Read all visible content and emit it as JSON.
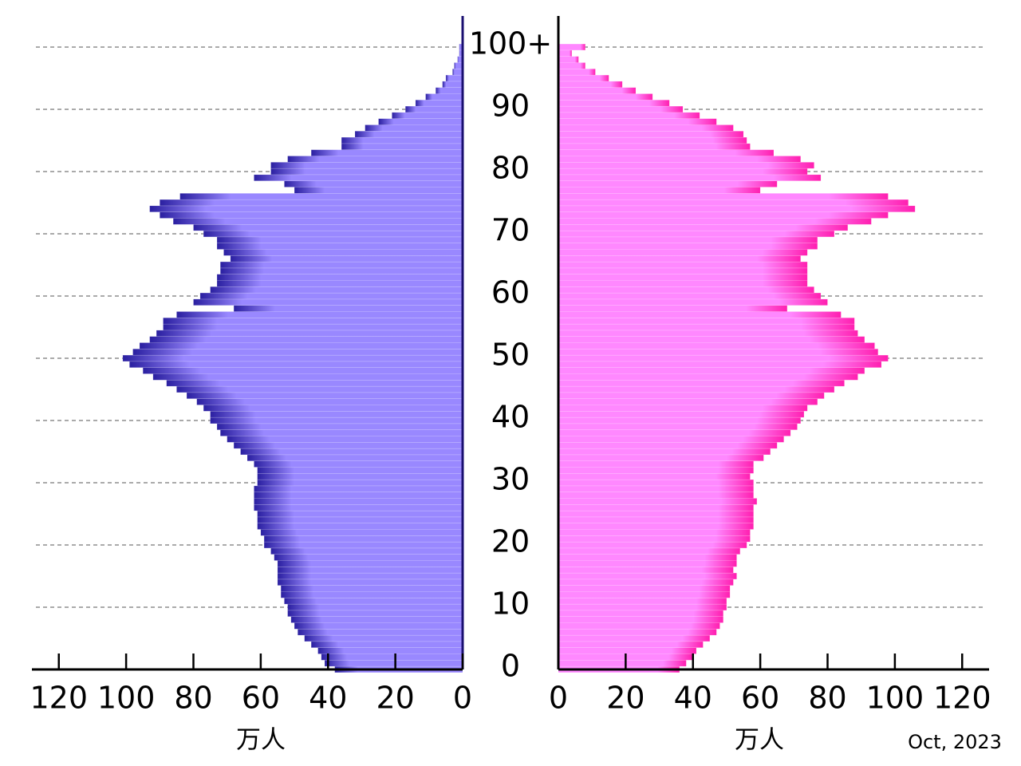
{
  "chart_data": {
    "type": "pyramid",
    "x_label": "万人",
    "annotation": "Oct, 2023",
    "y": [
      0,
      1,
      2,
      3,
      4,
      5,
      6,
      7,
      8,
      9,
      10,
      11,
      12,
      13,
      14,
      15,
      16,
      17,
      18,
      19,
      20,
      21,
      22,
      23,
      24,
      25,
      26,
      27,
      28,
      29,
      30,
      31,
      32,
      33,
      34,
      35,
      36,
      37,
      38,
      39,
      40,
      41,
      42,
      43,
      44,
      45,
      46,
      47,
      48,
      49,
      50,
      51,
      52,
      53,
      54,
      55,
      56,
      57,
      58,
      59,
      60,
      61,
      62,
      63,
      64,
      65,
      66,
      67,
      68,
      69,
      70,
      71,
      72,
      73,
      74,
      75,
      76,
      77,
      78,
      79,
      80,
      81,
      82,
      83,
      84,
      85,
      86,
      87,
      88,
      89,
      90,
      91,
      92,
      93,
      94,
      95,
      96,
      97,
      98,
      99,
      100
    ],
    "series": [
      {
        "side": "left",
        "color": "#9988ff",
        "edge_color": "#2a1fa0",
        "values": [
          38,
          41,
          42,
          43,
          45,
          47,
          49,
          50,
          51,
          52,
          52,
          53,
          54,
          54,
          55,
          55,
          55,
          55,
          56,
          57,
          59,
          59,
          60,
          61,
          61,
          61,
          62,
          62,
          62,
          62,
          61,
          61,
          61,
          62,
          64,
          66,
          68,
          70,
          72,
          73,
          75,
          75,
          77,
          79,
          82,
          85,
          88,
          92,
          95,
          99,
          101,
          98,
          96,
          93,
          91,
          89,
          89,
          85,
          68,
          80,
          78,
          75,
          73,
          73,
          72,
          72,
          69,
          71,
          73,
          73,
          77,
          80,
          86,
          90,
          93,
          90,
          84,
          50,
          53,
          62,
          57,
          57,
          52,
          45,
          36,
          36,
          32,
          29,
          25,
          21,
          17,
          14,
          11,
          8,
          6,
          5,
          3,
          2.5,
          1.5,
          1,
          1
        ]
      },
      {
        "side": "right",
        "color": "#ff88ff",
        "edge_color": "#ff1fb0",
        "values": [
          36,
          38,
          40,
          41,
          43,
          45,
          47,
          48,
          49,
          49,
          50,
          50,
          51,
          51,
          52,
          53,
          52,
          53,
          53,
          54,
          56,
          57,
          57,
          58,
          58,
          58,
          58,
          59,
          58,
          58,
          58,
          57,
          58,
          58,
          61,
          63,
          65,
          67,
          69,
          71,
          72,
          73,
          74,
          77,
          79,
          82,
          85,
          89,
          91,
          96,
          98,
          95,
          94,
          91,
          89,
          88,
          88,
          84,
          68,
          80,
          78,
          76,
          74,
          74,
          74,
          74,
          72,
          74,
          77,
          77,
          82,
          86,
          93,
          98,
          106,
          104,
          98,
          60,
          65,
          78,
          74,
          76,
          72,
          64,
          57,
          56,
          55,
          52,
          47,
          42,
          37,
          33,
          28,
          23,
          19,
          15,
          11,
          8,
          6,
          4,
          8
        ]
      }
    ],
    "xlim": [
      0,
      128
    ],
    "xticks": [
      0,
      20,
      40,
      60,
      80,
      100,
      120
    ],
    "ylim": [
      0,
      105
    ],
    "yticks": [
      0,
      10,
      20,
      30,
      40,
      50,
      60,
      70,
      80,
      90,
      {
        "value": 100,
        "label": "100+"
      }
    ],
    "grid": true
  }
}
